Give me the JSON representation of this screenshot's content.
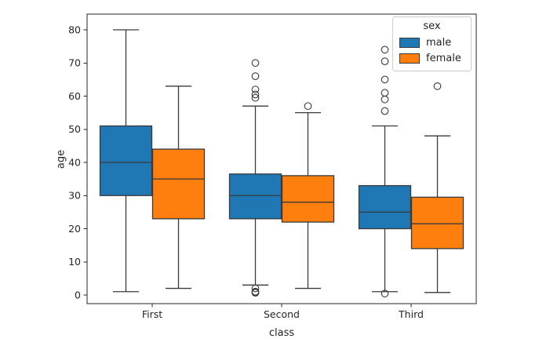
{
  "chart_data": {
    "type": "boxplot",
    "title": "",
    "xlabel": "class",
    "ylabel": "age",
    "categories": [
      "First",
      "Second",
      "Third"
    ],
    "yticks": [
      0,
      10,
      20,
      30,
      40,
      50,
      60,
      70,
      80
    ],
    "ylim": [
      -3.6,
      84.5
    ],
    "grid": false,
    "legend_position": "upper right inside plot",
    "hue": {
      "title": "sex",
      "entries": [
        {
          "name": "male",
          "color": "#1f77b4"
        },
        {
          "name": "female",
          "color": "#ff7f0e"
        }
      ]
    },
    "series": [
      {
        "name": "male",
        "color": "#1f77b4",
        "boxes": [
          {
            "category": "First",
            "whisker_low": 1,
            "q1": 30,
            "median": 40,
            "q3": 51,
            "whisker_high": 80,
            "outliers": []
          },
          {
            "category": "Second",
            "whisker_low": 3,
            "q1": 23,
            "median": 30,
            "q3": 36.5,
            "whisker_high": 57,
            "outliers": [
              70,
              66,
              62,
              60.5,
              59.5,
              2,
              1,
              0.83,
              0.67
            ]
          },
          {
            "category": "Third",
            "whisker_low": 1,
            "q1": 20,
            "median": 25,
            "q3": 33,
            "whisker_high": 51,
            "outliers": [
              74,
              70.5,
              65,
              61,
              59,
              55.5,
              0.42
            ]
          }
        ]
      },
      {
        "name": "female",
        "color": "#ff7f0e",
        "boxes": [
          {
            "category": "First",
            "whisker_low": 2,
            "q1": 23,
            "median": 35,
            "q3": 44,
            "whisker_high": 63,
            "outliers": []
          },
          {
            "category": "Second",
            "whisker_low": 2,
            "q1": 22,
            "median": 28,
            "q3": 36,
            "whisker_high": 55,
            "outliers": [
              57
            ]
          },
          {
            "category": "Third",
            "whisker_low": 0.75,
            "q1": 14,
            "median": 21.5,
            "q3": 29.5,
            "whisker_high": 48,
            "outliers": [
              63
            ]
          }
        ]
      }
    ]
  }
}
